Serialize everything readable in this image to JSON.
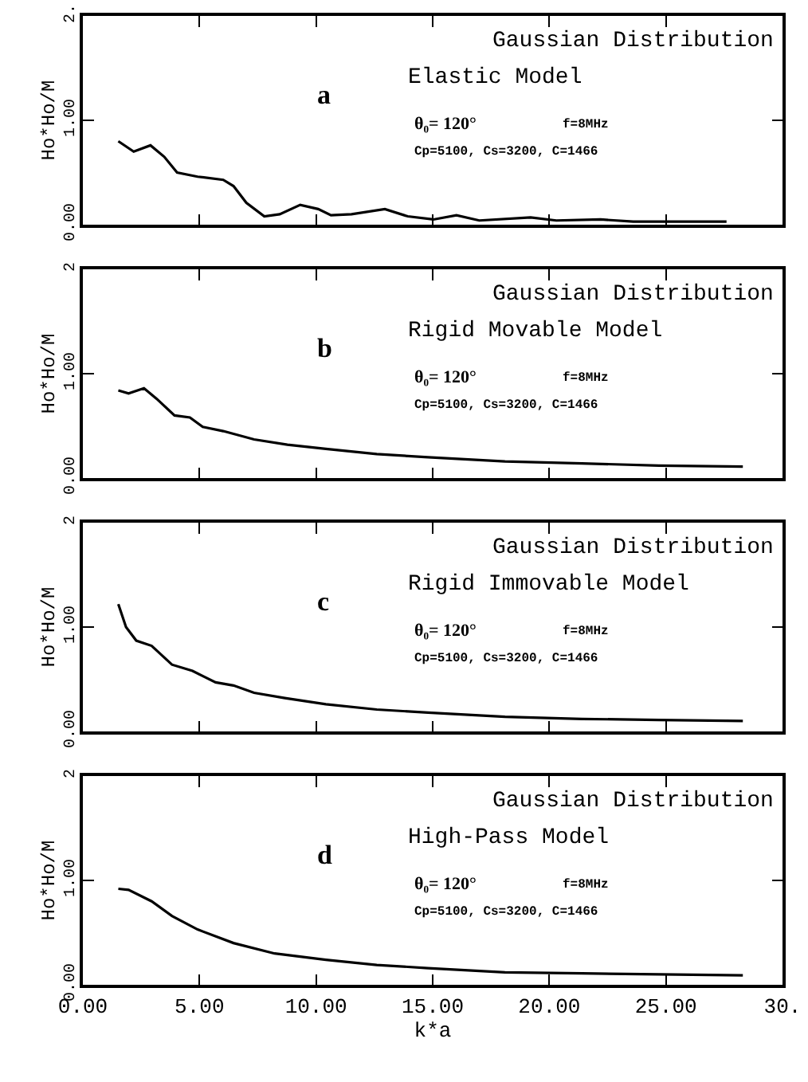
{
  "chart_data": [
    {
      "type": "line",
      "title": "Gaussian Distribution",
      "subtitle": "Elastic Model",
      "ylabel": "Ho*Ho/M",
      "annotations": [
        "a",
        "θ₀= 120°",
        "f=8MHz",
        "Cp=5100, Cs=3200, C=1466"
      ],
      "xlim": [
        0,
        30
      ],
      "xticks": [
        {
          "value": 0,
          "label": null
        },
        {
          "value": 5,
          "label": null
        },
        {
          "value": 10,
          "label": null
        },
        {
          "value": 15,
          "label": null
        },
        {
          "value": 20,
          "label": null
        },
        {
          "value": 25,
          "label": null
        },
        {
          "value": 30,
          "label": null
        }
      ],
      "ylim": [
        0,
        2
      ],
      "yticks": [
        {
          "value": 0,
          "label": "0.00"
        },
        {
          "value": 1,
          "label": "1.00"
        },
        {
          "value": 2,
          "label": "2."
        }
      ],
      "tick_labels": "y",
      "marker": "none",
      "line_style": "solid",
      "series": [
        {
          "color": "#000000",
          "x": [
            1.52,
            2.18,
            2.9,
            3.49,
            4.04,
            4.92,
            6.02,
            6.46,
            7.01,
            7.78,
            8.44,
            9.32,
            10.09,
            10.64,
            11.52,
            12.95,
            13.93,
            15.03,
            16.02,
            17.0,
            19.2,
            20.3,
            22.2,
            23.6,
            27.6
          ],
          "values": [
            0.8,
            0.7,
            0.76,
            0.65,
            0.5,
            0.46,
            0.43,
            0.37,
            0.21,
            0.08,
            0.1,
            0.19,
            0.15,
            0.09,
            0.1,
            0.15,
            0.08,
            0.05,
            0.09,
            0.04,
            0.07,
            0.04,
            0.05,
            0.03,
            0.03
          ]
        }
      ]
    },
    {
      "type": "line",
      "title": "Gaussian Distribution",
      "subtitle": "Rigid Movable Model",
      "ylabel": "Ho*Ho/M",
      "annotations": [
        "b",
        "θ₀= 120°",
        "f=8MHz",
        "Cp=5100, Cs=3200, C=1466"
      ],
      "xlim": [
        0,
        30
      ],
      "xticks": [
        {
          "value": 0,
          "label": null
        },
        {
          "value": 5,
          "label": null
        },
        {
          "value": 10,
          "label": null
        },
        {
          "value": 15,
          "label": null
        },
        {
          "value": 20,
          "label": null
        },
        {
          "value": 25,
          "label": null
        },
        {
          "value": 30,
          "label": null
        }
      ],
      "ylim": [
        0,
        2
      ],
      "yticks": [
        {
          "value": 0,
          "label": "0.00"
        },
        {
          "value": 1,
          "label": "1.00"
        },
        {
          "value": 2,
          "label": "2"
        }
      ],
      "tick_labels": "y",
      "marker": "none",
      "line_style": "solid",
      "series": [
        {
          "color": "#000000",
          "x": [
            1.52,
            1.96,
            2.62,
            3.16,
            3.93,
            4.59,
            5.14,
            6.02,
            7.34,
            8.77,
            10.42,
            12.6,
            14.8,
            18.1,
            21.4,
            24.7,
            28.3
          ],
          "values": [
            0.84,
            0.81,
            0.86,
            0.76,
            0.6,
            0.58,
            0.49,
            0.45,
            0.37,
            0.32,
            0.28,
            0.23,
            0.2,
            0.16,
            0.14,
            0.12,
            0.11
          ]
        }
      ]
    },
    {
      "type": "line",
      "title": "Gaussian Distribution",
      "subtitle": "Rigid Immovable Model",
      "ylabel": "Ho*Ho/M",
      "annotations": [
        "c",
        "θ₀= 120°",
        "f=8MHz",
        "Cp=5100, Cs=3200, C=1466"
      ],
      "xlim": [
        0,
        30
      ],
      "xticks": [
        {
          "value": 0,
          "label": null
        },
        {
          "value": 5,
          "label": null
        },
        {
          "value": 10,
          "label": null
        },
        {
          "value": 15,
          "label": null
        },
        {
          "value": 20,
          "label": null
        },
        {
          "value": 25,
          "label": null
        },
        {
          "value": 30,
          "label": null
        }
      ],
      "ylim": [
        0,
        2
      ],
      "yticks": [
        {
          "value": 0,
          "label": "0.00"
        },
        {
          "value": 1,
          "label": "1.00"
        },
        {
          "value": 2,
          "label": "2"
        }
      ],
      "tick_labels": "y",
      "marker": "none",
      "line_style": "solid",
      "series": [
        {
          "color": "#000000",
          "x": [
            1.52,
            1.85,
            2.29,
            2.95,
            3.82,
            4.7,
            5.69,
            6.46,
            7.34,
            8.66,
            10.42,
            12.6,
            14.8,
            18.1,
            21.4,
            24.7,
            28.3
          ],
          "values": [
            1.22,
            1.0,
            0.87,
            0.82,
            0.64,
            0.58,
            0.47,
            0.44,
            0.37,
            0.32,
            0.26,
            0.21,
            0.18,
            0.14,
            0.12,
            0.11,
            0.1
          ]
        }
      ]
    },
    {
      "type": "line",
      "title": "Gaussian Distribution",
      "subtitle": "High-Pass Model",
      "xlabel": "k*a",
      "ylabel": "Ho*Ho/M",
      "annotations": [
        "d",
        "θ₀= 120°",
        "f=8MHz",
        "Cp=5100, Cs=3200, C=1466"
      ],
      "xlim": [
        0,
        30
      ],
      "xticks": [
        {
          "value": 0,
          "label": "0.00"
        },
        {
          "value": 5,
          "label": "5.00"
        },
        {
          "value": 10,
          "label": "10.00"
        },
        {
          "value": 15,
          "label": "15.00"
        },
        {
          "value": 20,
          "label": "20.00"
        },
        {
          "value": 25,
          "label": "25.00"
        },
        {
          "value": 30,
          "label": "30."
        }
      ],
      "ylim": [
        0,
        2
      ],
      "yticks": [
        {
          "value": 0,
          "label": "0.00"
        },
        {
          "value": 1,
          "label": "1.00"
        },
        {
          "value": 2,
          "label": "2"
        }
      ],
      "marker": "none",
      "line_style": "solid",
      "series": [
        {
          "color": "#000000",
          "x": [
            1.52,
            1.96,
            2.95,
            3.82,
            4.92,
            6.46,
            8.22,
            10.42,
            12.6,
            14.8,
            18.1,
            21.4,
            24.7,
            28.3
          ],
          "values": [
            0.92,
            0.91,
            0.8,
            0.66,
            0.53,
            0.4,
            0.3,
            0.24,
            0.19,
            0.16,
            0.12,
            0.11,
            0.1,
            0.09
          ]
        }
      ]
    }
  ]
}
